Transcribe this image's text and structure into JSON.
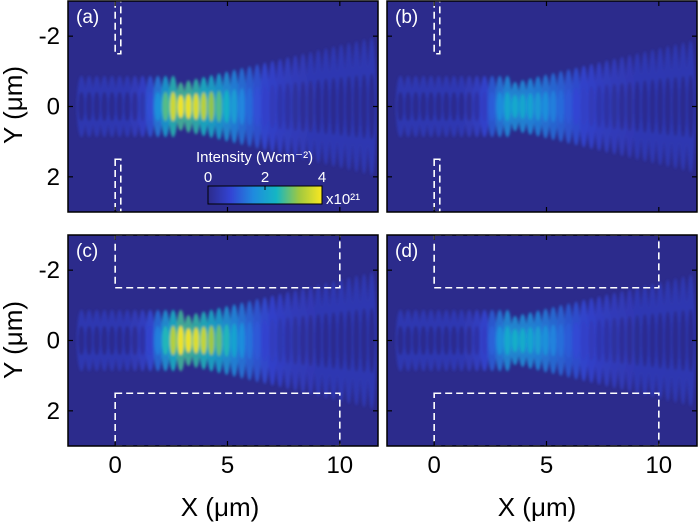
{
  "chart_data": {
    "type": "heatmap",
    "xlabel": "X (μm)",
    "ylabel": "Y (μm)",
    "xlim": [
      -2.1,
      11.7
    ],
    "ylim": [
      -3,
      3
    ],
    "y_inverted": true,
    "x_ticks": [
      "0",
      "5",
      "10"
    ],
    "x_tick_values": [
      0,
      5,
      10
    ],
    "y_ticks": [
      "-2",
      "0",
      "2"
    ],
    "y_tick_values": [
      -2,
      0,
      2
    ],
    "colorbar": {
      "title": "Intensity (Wcm⁻²)",
      "ticks": [
        "0",
        "2",
        "4"
      ],
      "tick_values": [
        0,
        2,
        4
      ],
      "multiplier": "x10²¹",
      "range": [
        0,
        4
      ]
    },
    "panels": [
      {
        "label": "(a)",
        "peak_x": 2.9,
        "peak_intensity": 4.0,
        "walls": [
          {
            "x": [
              0,
              0.25
            ],
            "y": [
              -3,
              -1.5
            ]
          },
          {
            "x": [
              0,
              0.25
            ],
            "y": [
              1.5,
              3
            ]
          }
        ]
      },
      {
        "label": "(b)",
        "peak_x": 3.5,
        "peak_intensity": 2.2,
        "walls": [
          {
            "x": [
              0,
              0.25
            ],
            "y": [
              -3,
              -1.5
            ]
          },
          {
            "x": [
              0,
              0.25
            ],
            "y": [
              1.5,
              3
            ]
          }
        ]
      },
      {
        "label": "(c)",
        "peak_x": 3.0,
        "peak_intensity": 4.0,
        "walls": [
          {
            "x": [
              0,
              10
            ],
            "y": [
              -3,
              -1.5
            ]
          },
          {
            "x": [
              0,
              10
            ],
            "y": [
              1.5,
              3
            ]
          }
        ]
      },
      {
        "label": "(d)",
        "peak_x": 3.5,
        "peak_intensity": 2.3,
        "walls": [
          {
            "x": [
              0,
              10
            ],
            "y": [
              -3,
              -1.5
            ]
          },
          {
            "x": [
              0,
              10
            ],
            "y": [
              1.5,
              3
            ]
          }
        ]
      }
    ]
  },
  "colors": {
    "background_low": "#2c2b8c",
    "mid": "#1f8bde",
    "high": "#f9e721",
    "wall": "#ffffff"
  }
}
